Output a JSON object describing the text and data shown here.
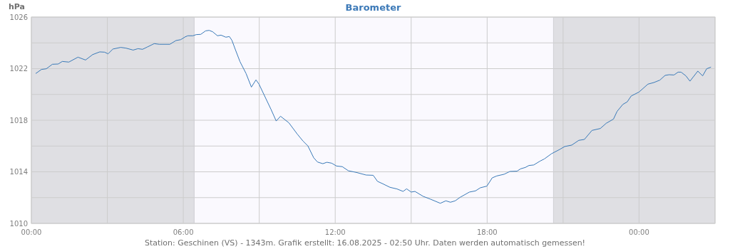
{
  "chart_data": {
    "type": "line",
    "title": "Barometer",
    "ylabel": "hPa",
    "annotations": [
      "Station: Geschinen (VS) - 1343m. Grafik erstellt: 16.08.2025 - 02:50 Uhr. Daten werden automatisch gemessen!"
    ],
    "xlim": [
      0,
      27
    ],
    "ylim": [
      1010,
      1026
    ],
    "xticks": [
      {
        "value": 0,
        "label": "00:00"
      },
      {
        "value": 3,
        "label": null
      },
      {
        "value": 6,
        "label": "06:00"
      },
      {
        "value": 9,
        "label": null
      },
      {
        "value": 12,
        "label": "12:00"
      },
      {
        "value": 15,
        "label": null
      },
      {
        "value": 18,
        "label": "18:00"
      },
      {
        "value": 21,
        "label": null
      },
      {
        "value": 24,
        "label": "00:00"
      },
      {
        "value": 27,
        "label": null
      }
    ],
    "yticks": [
      1010,
      {
        "value": 1012,
        "label": null
      },
      1014,
      {
        "value": 1016,
        "label": null
      },
      1018,
      {
        "value": 1020,
        "label": null
      },
      1022,
      {
        "value": 1024,
        "label": null
      },
      1026
    ],
    "grid": true,
    "marker": "none",
    "line_style": "solid",
    "ref_lines": [
      {
        "axis": "x",
        "value": 6.43,
        "color": "#cfcfd3"
      },
      {
        "axis": "x",
        "value": 20.62,
        "color": "#cfcfd3"
      }
    ],
    "bands": [
      {
        "axis": "x",
        "from": 0,
        "to": 6.43,
        "color": "#dfdfe3"
      },
      {
        "axis": "x",
        "from": 20.62,
        "to": 27,
        "color": "#dfdfe3"
      }
    ],
    "series": [
      {
        "color": "#3a7ab8",
        "x": [
          0.17,
          0.4,
          0.59,
          0.83,
          1.06,
          1.22,
          1.48,
          1.84,
          2.14,
          2.42,
          2.7,
          2.89,
          3.03,
          3.22,
          3.53,
          3.74,
          4.02,
          4.21,
          4.39,
          4.58,
          4.85,
          5.05,
          5.47,
          5.71,
          5.9,
          6.08,
          6.18,
          6.38,
          6.51,
          6.69,
          6.88,
          7.02,
          7.16,
          7.35,
          7.49,
          7.68,
          7.82,
          7.92,
          8.06,
          8.24,
          8.48,
          8.69,
          8.87,
          8.99,
          9.28,
          9.46,
          9.67,
          9.84,
          10.17,
          10.5,
          10.73,
          10.92,
          11.15,
          11.3,
          11.51,
          11.67,
          11.86,
          12.05,
          12.28,
          12.52,
          12.84,
          13.22,
          13.5,
          13.67,
          13.88,
          14.16,
          14.44,
          14.68,
          14.82,
          15.0,
          15.15,
          15.47,
          15.76,
          16.15,
          16.37,
          16.55,
          16.74,
          16.93,
          17.3,
          17.54,
          17.73,
          17.99,
          18.2,
          18.38,
          18.67,
          18.9,
          19.18,
          19.32,
          19.51,
          19.65,
          19.84,
          20.08,
          20.26,
          20.54,
          20.87,
          21.06,
          21.34,
          21.62,
          21.84,
          22.14,
          22.47,
          22.7,
          22.99,
          23.13,
          23.36,
          23.53,
          23.69,
          24.0,
          24.35,
          24.58,
          24.82,
          25.03,
          25.19,
          25.38,
          25.54,
          25.66,
          25.85,
          26.01,
          26.32,
          26.51,
          26.67,
          26.84
        ],
        "values": [
          1021.62,
          1021.94,
          1021.99,
          1022.34,
          1022.36,
          1022.56,
          1022.51,
          1022.89,
          1022.67,
          1023.09,
          1023.3,
          1023.28,
          1023.15,
          1023.52,
          1023.65,
          1023.59,
          1023.44,
          1023.55,
          1023.5,
          1023.68,
          1023.94,
          1023.89,
          1023.89,
          1024.18,
          1024.25,
          1024.47,
          1024.55,
          1024.55,
          1024.64,
          1024.66,
          1024.93,
          1024.97,
          1024.86,
          1024.55,
          1024.6,
          1024.44,
          1024.49,
          1024.2,
          1023.46,
          1022.54,
          1021.62,
          1020.57,
          1021.13,
          1020.8,
          1019.6,
          1018.86,
          1017.94,
          1018.31,
          1017.8,
          1016.93,
          1016.38,
          1016.01,
          1015.09,
          1014.76,
          1014.63,
          1014.74,
          1014.67,
          1014.45,
          1014.4,
          1014.08,
          1013.95,
          1013.75,
          1013.73,
          1013.26,
          1013.07,
          1012.8,
          1012.67,
          1012.48,
          1012.68,
          1012.43,
          1012.48,
          1012.1,
          1011.88,
          1011.56,
          1011.75,
          1011.64,
          1011.75,
          1012.02,
          1012.43,
          1012.52,
          1012.76,
          1012.89,
          1013.53,
          1013.68,
          1013.81,
          1014.03,
          1014.05,
          1014.23,
          1014.34,
          1014.49,
          1014.53,
          1014.82,
          1015.0,
          1015.4,
          1015.74,
          1015.96,
          1016.07,
          1016.44,
          1016.51,
          1017.21,
          1017.36,
          1017.76,
          1018.09,
          1018.68,
          1019.23,
          1019.42,
          1019.88,
          1020.19,
          1020.8,
          1020.92,
          1021.11,
          1021.48,
          1021.53,
          1021.51,
          1021.73,
          1021.73,
          1021.44,
          1021.03,
          1021.81,
          1021.44,
          1021.99,
          1022.12
        ]
      }
    ]
  }
}
